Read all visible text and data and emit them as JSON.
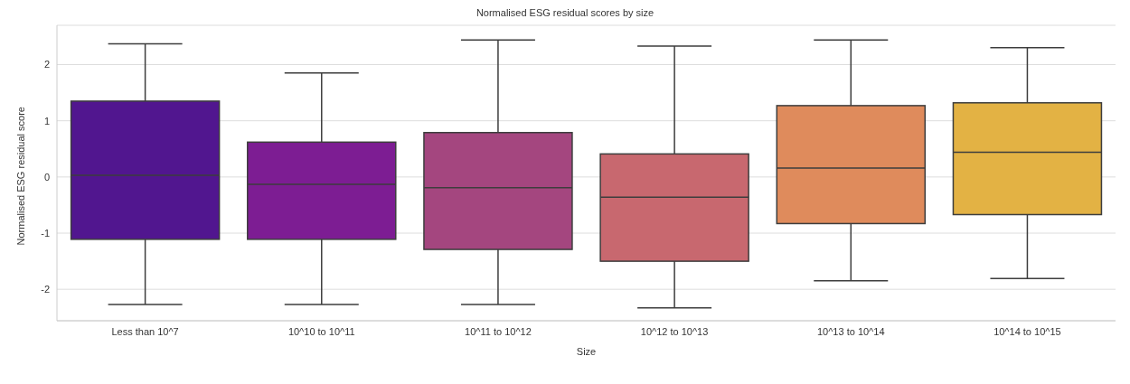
{
  "chart_data": {
    "type": "box",
    "title": "Normalised ESG residual scores by size",
    "xlabel": "Size",
    "ylabel": "Normalised ESG residual score",
    "categories": [
      "Less than 10^7",
      "10^10 to 10^11",
      "10^11 to 10^12",
      "10^12 to 10^13",
      "10^13 to 10^14",
      "10^14 to 10^15"
    ],
    "boxes": [
      {
        "low": -2.27,
        "q1": -1.11,
        "median": 0.03,
        "q3": 1.35,
        "high": 2.37
      },
      {
        "low": -2.27,
        "q1": -1.11,
        "median": -0.13,
        "q3": 0.62,
        "high": 1.85
      },
      {
        "low": -2.27,
        "q1": -1.29,
        "median": -0.19,
        "q3": 0.79,
        "high": 2.44
      },
      {
        "low": -2.33,
        "q1": -1.5,
        "median": -0.36,
        "q3": 0.41,
        "high": 2.33
      },
      {
        "low": -1.85,
        "q1": -0.83,
        "median": 0.16,
        "q3": 1.27,
        "high": 2.44
      },
      {
        "low": -1.81,
        "q1": -0.67,
        "median": 0.44,
        "q3": 1.32,
        "high": 2.3
      }
    ],
    "colors": [
      "#51168f",
      "#7d1d93",
      "#a4467f",
      "#c8686f",
      "#df8b5c",
      "#e3b244"
    ],
    "ylim": [
      -2.56,
      2.7
    ],
    "yticks": [
      -2,
      -1,
      0,
      1,
      2
    ],
    "grid": "y"
  }
}
